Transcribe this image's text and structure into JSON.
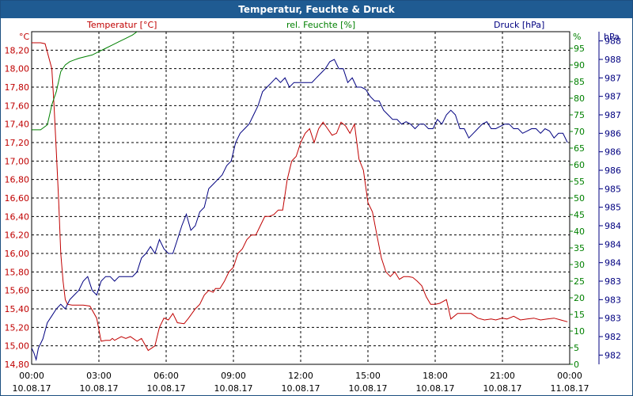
{
  "window": {
    "title": "Temperatur, Feuchte & Druck"
  },
  "chart_data": {
    "type": "line",
    "title": "Temperatur, Feuchte & Druck",
    "x_ticks": [
      {
        "time": "00:00",
        "date": "10.08.17"
      },
      {
        "time": "03:00",
        "date": "10.08.17"
      },
      {
        "time": "06:00",
        "date": "10.08.17"
      },
      {
        "time": "09:00",
        "date": "10.08.17"
      },
      {
        "time": "12:00",
        "date": "10.08.17"
      },
      {
        "time": "15:00",
        "date": "10.08.17"
      },
      {
        "time": "18:00",
        "date": "10.08.17"
      },
      {
        "time": "21:00",
        "date": "10.08.17"
      },
      {
        "time": "00:00",
        "date": "11.08.17"
      }
    ],
    "x_range_hours": [
      0,
      24
    ],
    "axes": {
      "temperature": {
        "label": "Temperatur [°C]",
        "unit": "°C",
        "color": "#c00000",
        "range": [
          14.8,
          18.4
        ],
        "ticks": [
          "14,80",
          "15,00",
          "15,20",
          "15,40",
          "15,60",
          "15,80",
          "16,00",
          "16,20",
          "16,40",
          "16,60",
          "16,80",
          "17,00",
          "17,20",
          "17,40",
          "17,60",
          "17,80",
          "18,00",
          "18,20"
        ]
      },
      "humidity": {
        "label": "rel. Feuchte [%]",
        "unit": "%",
        "color": "#008000",
        "range": [
          0,
          100
        ],
        "ticks": [
          "0",
          "5",
          "10",
          "15",
          "20",
          "25",
          "30",
          "35",
          "40",
          "45",
          "50",
          "55",
          "60",
          "65",
          "70",
          "75",
          "80",
          "85",
          "90",
          "95"
        ]
      },
      "pressure": {
        "label": "Druck [hPa]",
        "unit": "hPa",
        "color": "#000080",
        "range": [
          981.6,
          988.8
        ],
        "ticks": [
          "982",
          "982",
          "983",
          "983",
          "983",
          "984",
          "984",
          "984",
          "985",
          "985",
          "986",
          "986",
          "986",
          "987",
          "987",
          "987",
          "988",
          "988"
        ]
      }
    },
    "series": [
      {
        "name": "Temperatur [°C]",
        "axis": "temperature",
        "color": "#c00000",
        "x": [
          0,
          0.4,
          0.6,
          0.9,
          1.0,
          1.1,
          1.2,
          1.3,
          1.4,
          1.5,
          1.6,
          1.8,
          2.0,
          2.3,
          2.6,
          2.9,
          3.1,
          3.3,
          3.5,
          3.6,
          3.7,
          4.0,
          4.2,
          4.4,
          4.7,
          4.9,
          5.2,
          5.5,
          5.7,
          5.9,
          6.1,
          6.3,
          6.5,
          6.8,
          7.0,
          7.3,
          7.5,
          7.7,
          7.9,
          8.1,
          8.2,
          8.4,
          8.6,
          8.8,
          9.0,
          9.2,
          9.4,
          9.6,
          9.8,
          10.0,
          10.2,
          10.4,
          10.6,
          10.8,
          11.0,
          11.2,
          11.4,
          11.6,
          11.8,
          12.0,
          12.2,
          12.4,
          12.6,
          12.8,
          13.0,
          13.2,
          13.4,
          13.6,
          13.8,
          14.0,
          14.2,
          14.4,
          14.6,
          14.8,
          15.0,
          15.2,
          15.4,
          15.6,
          15.8,
          16.0,
          16.2,
          16.4,
          16.6,
          16.8,
          17.0,
          17.2,
          17.4,
          17.6,
          17.8,
          18.0,
          18.2,
          18.5,
          18.7,
          19.0,
          19.3,
          19.6,
          19.9,
          20.2,
          20.5,
          20.7,
          21.0,
          21.2,
          21.5,
          21.8,
          22.1,
          22.4,
          22.7,
          23.0,
          23.3,
          23.6,
          23.9
        ],
        "values": [
          18.28,
          18.28,
          18.27,
          18.0,
          17.6,
          17.1,
          16.6,
          16.0,
          15.7,
          15.5,
          15.45,
          15.44,
          15.44,
          15.44,
          15.43,
          15.3,
          15.05,
          15.06,
          15.06,
          15.08,
          15.06,
          15.1,
          15.08,
          15.1,
          15.05,
          15.08,
          14.95,
          15.0,
          15.2,
          15.3,
          15.28,
          15.35,
          15.25,
          15.24,
          15.3,
          15.4,
          15.45,
          15.55,
          15.6,
          15.58,
          15.62,
          15.62,
          15.7,
          15.8,
          15.85,
          16.0,
          16.05,
          16.15,
          16.2,
          16.2,
          16.3,
          16.4,
          16.4,
          16.42,
          16.47,
          16.47,
          16.8,
          17.0,
          17.05,
          17.2,
          17.3,
          17.35,
          17.2,
          17.35,
          17.42,
          17.35,
          17.28,
          17.3,
          17.42,
          17.38,
          17.3,
          17.4,
          17.02,
          16.9,
          16.55,
          16.45,
          16.2,
          15.95,
          15.8,
          15.75,
          15.8,
          15.72,
          15.75,
          15.75,
          15.74,
          15.7,
          15.65,
          15.53,
          15.45,
          15.45,
          15.46,
          15.5,
          15.29,
          15.35,
          15.35,
          15.35,
          15.3,
          15.28,
          15.29,
          15.28,
          15.3,
          15.29,
          15.32,
          15.28,
          15.29,
          15.3,
          15.28,
          15.29,
          15.3,
          15.28,
          15.26
        ]
      },
      {
        "name": "rel. Feuchte [%]",
        "axis": "humidity",
        "color": "#008000",
        "x": [
          0,
          0.4,
          0.7,
          0.8,
          0.9,
          1.0,
          1.1,
          1.2,
          1.3,
          1.5,
          1.7,
          1.9,
          2.1,
          2.4,
          2.7,
          3.0,
          3.3,
          3.6,
          3.9,
          4.2,
          4.5,
          4.8,
          5.1,
          5.4
        ],
        "values": [
          70.5,
          70.5,
          72,
          75,
          78,
          80,
          82,
          85,
          88,
          90,
          91,
          91.5,
          92,
          92.5,
          93,
          94,
          95,
          96,
          97,
          98,
          99,
          100.5,
          101.5,
          102.5
        ]
      },
      {
        "name": "Druck [hPa]",
        "axis": "pressure",
        "color": "#000080",
        "x": [
          0,
          0.1,
          0.2,
          0.3,
          0.5,
          0.7,
          0.9,
          1.1,
          1.3,
          1.5,
          1.7,
          1.9,
          2.1,
          2.3,
          2.5,
          2.7,
          2.9,
          3.1,
          3.3,
          3.5,
          3.7,
          3.9,
          4.1,
          4.3,
          4.5,
          4.7,
          4.9,
          5.1,
          5.3,
          5.5,
          5.7,
          5.9,
          6.1,
          6.3,
          6.5,
          6.7,
          6.9,
          7.1,
          7.3,
          7.5,
          7.7,
          7.9,
          8.1,
          8.3,
          8.5,
          8.7,
          8.9,
          9.1,
          9.3,
          9.5,
          9.7,
          9.9,
          10.1,
          10.3,
          10.5,
          10.7,
          10.9,
          11.1,
          11.3,
          11.5,
          11.7,
          11.9,
          12.1,
          12.3,
          12.5,
          12.7,
          12.9,
          13.1,
          13.3,
          13.5,
          13.7,
          13.9,
          14.1,
          14.3,
          14.5,
          14.7,
          14.9,
          15.1,
          15.3,
          15.5,
          15.7,
          15.9,
          16.1,
          16.3,
          16.5,
          16.7,
          16.9,
          17.1,
          17.3,
          17.5,
          17.7,
          17.9,
          18.1,
          18.3,
          18.5,
          18.7,
          18.9,
          19.1,
          19.3,
          19.5,
          19.7,
          19.9,
          20.1,
          20.3,
          20.5,
          20.7,
          20.9,
          21.1,
          21.3,
          21.5,
          21.7,
          21.9,
          22.1,
          22.3,
          22.5,
          22.7,
          22.9,
          23.1,
          23.3,
          23.5,
          23.7,
          23.9
        ],
        "values": [
          981.95,
          981.85,
          981.7,
          981.95,
          982.15,
          982.5,
          982.65,
          982.8,
          982.9,
          982.8,
          983.0,
          983.1,
          983.2,
          983.4,
          983.5,
          983.2,
          983.1,
          983.4,
          983.5,
          983.5,
          983.4,
          983.5,
          983.5,
          983.5,
          983.5,
          983.6,
          983.9,
          984.0,
          984.15,
          984.0,
          984.3,
          984.1,
          984.0,
          984.0,
          984.3,
          984.6,
          984.85,
          984.5,
          984.6,
          984.9,
          985.0,
          985.4,
          985.5,
          985.6,
          985.7,
          985.9,
          986.0,
          986.4,
          986.6,
          986.7,
          986.8,
          987.0,
          987.2,
          987.5,
          987.6,
          987.7,
          987.8,
          987.7,
          987.8,
          987.6,
          987.7,
          987.7,
          987.7,
          987.7,
          987.7,
          987.8,
          987.9,
          988.0,
          988.15,
          988.2,
          988.0,
          988.0,
          987.7,
          987.8,
          987.6,
          987.6,
          987.55,
          987.4,
          987.3,
          987.3,
          987.1,
          987.0,
          986.9,
          986.9,
          986.8,
          986.85,
          986.8,
          986.7,
          986.8,
          986.8,
          986.7,
          986.7,
          986.9,
          986.8,
          987.0,
          987.1,
          987.0,
          986.7,
          986.7,
          986.5,
          986.6,
          986.7,
          986.8,
          986.85,
          986.7,
          986.7,
          986.75,
          986.8,
          986.8,
          986.7,
          986.7,
          986.6,
          986.65,
          986.7,
          986.7,
          986.6,
          986.7,
          986.65,
          986.5,
          986.6,
          986.6,
          986.4
        ]
      }
    ],
    "grid": true,
    "legend": "top"
  }
}
